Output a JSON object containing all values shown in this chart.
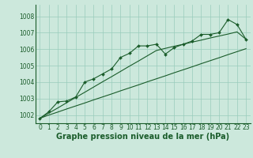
{
  "title": "Graphe pression niveau de la mer (hPa)",
  "title_fontsize": 7,
  "background_color": "#cce8dc",
  "grid_color": "#99ccbb",
  "line_color": "#1a5c2a",
  "ylim": [
    1001.5,
    1008.7
  ],
  "xlim": [
    -0.5,
    23.5
  ],
  "yticks": [
    1002,
    1003,
    1004,
    1005,
    1006,
    1007,
    1008
  ],
  "xticks": [
    0,
    1,
    2,
    3,
    4,
    5,
    6,
    7,
    8,
    9,
    10,
    11,
    12,
    13,
    14,
    15,
    16,
    17,
    18,
    19,
    20,
    21,
    22,
    23
  ],
  "main_data": [
    1001.8,
    1002.2,
    1002.8,
    1002.85,
    1003.1,
    1004.0,
    1004.2,
    1004.5,
    1004.8,
    1005.5,
    1005.75,
    1006.2,
    1006.2,
    1006.3,
    1005.7,
    1006.1,
    1006.3,
    1006.5,
    1006.9,
    1006.9,
    1007.0,
    1007.8,
    1007.5,
    1006.6
  ],
  "low_line": [
    1001.8,
    1002.0,
    1002.18,
    1002.37,
    1002.55,
    1002.73,
    1002.92,
    1003.1,
    1003.28,
    1003.47,
    1003.65,
    1003.83,
    1004.02,
    1004.2,
    1004.38,
    1004.57,
    1004.75,
    1004.93,
    1005.12,
    1005.3,
    1005.48,
    1005.67,
    1005.85,
    1006.03
  ],
  "high_line": [
    1001.8,
    1002.12,
    1002.43,
    1002.75,
    1003.07,
    1003.38,
    1003.7,
    1004.02,
    1004.33,
    1004.65,
    1004.97,
    1005.28,
    1005.6,
    1005.92,
    1006.05,
    1006.18,
    1006.3,
    1006.43,
    1006.55,
    1006.68,
    1006.8,
    1006.92,
    1007.05,
    1006.6
  ]
}
